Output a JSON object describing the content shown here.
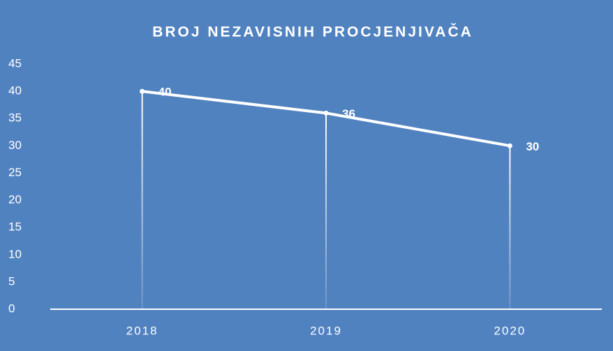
{
  "chart_data": {
    "type": "line",
    "title": "BROJ NEZAVISNIH PROCJENJIVAČA",
    "categories": [
      "2018",
      "2019",
      "2020"
    ],
    "values": [
      40,
      36,
      30
    ],
    "color": "#ffffff",
    "ylim": [
      0,
      45
    ],
    "yticks": [
      0,
      5,
      10,
      15,
      20,
      25,
      30,
      35,
      40,
      45
    ],
    "drop_lines": true
  }
}
